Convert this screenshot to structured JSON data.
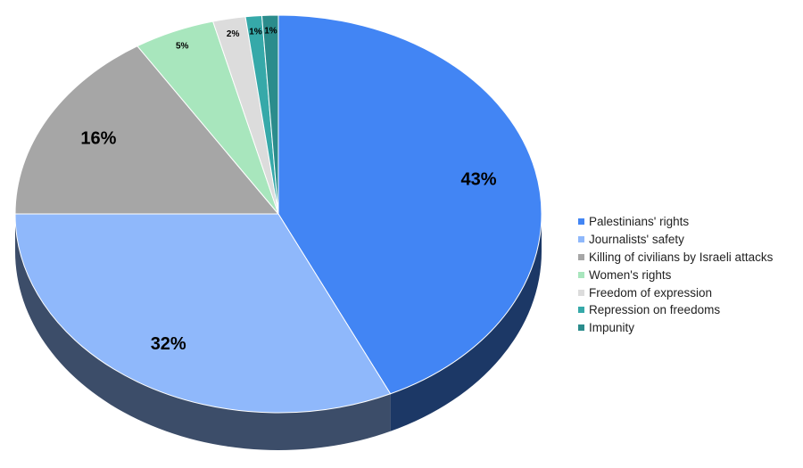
{
  "chart_data": {
    "type": "pie",
    "title": "",
    "categories": [
      "Palestinians' rights",
      "Journalists' safety",
      "Killing of civilians by Israeli attacks",
      "Women's rights",
      "Freedom of expression",
      "Repression on freedoms",
      "Impunity"
    ],
    "values": [
      43,
      32,
      16,
      5,
      2,
      1,
      1
    ],
    "labels": [
      "43%",
      "32%",
      "16%",
      "5%",
      "2%",
      "1%",
      "1%"
    ],
    "colors": [
      "#4285f4",
      "#8fb8fb",
      "#a6a6a6",
      "#a8e6bd",
      "#dcdcdc",
      "#36a9a9",
      "#2b8c8c"
    ],
    "legend_position": "right",
    "style": "3d"
  }
}
